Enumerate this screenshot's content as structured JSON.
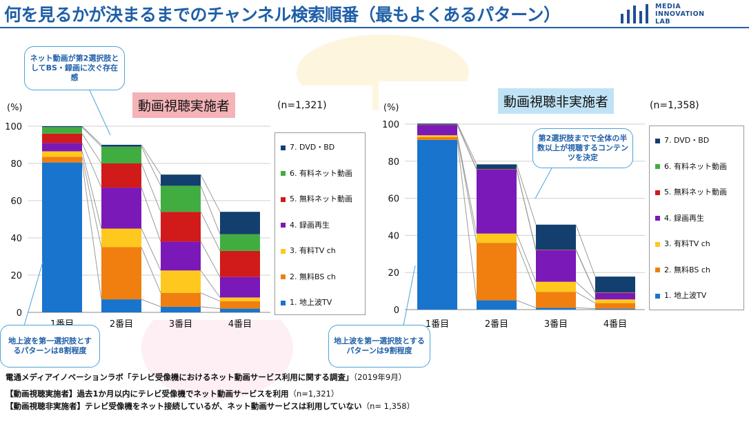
{
  "page": {
    "title": "何を見るかが決まるまでのチャンネル検索順番（最もよくあるパターン）",
    "logo": [
      "MEDIA",
      "INNOVATION",
      "LAB"
    ],
    "source_org": "電通メディアイノベーションラボ「テレビ受像機におけるネット動画サービス利用に関する調査」",
    "source_date": "（2019年9月）",
    "note1_label": "【動画視聴実施者】過去1か月以内にテレビ受像機でネット動画サービスを利用",
    "note1_n": "（n=1,321）",
    "note2_label": "【動画視聴非実施者】テレビ受像機をネット接続しているが、ネット動画サービスは利用していない",
    "note2_n": "（n= 1,358）"
  },
  "colors": {
    "title": "#1f5fa8",
    "chart1_title_bg": "#f4b3b7",
    "chart2_title_bg": "#bfe3f5",
    "series": [
      "#1874cd",
      "#f07f10",
      "#ffc81e",
      "#7a18b8",
      "#d11a1a",
      "#41ad41",
      "#123f6e"
    ]
  },
  "chart_data": [
    {
      "type": "bar",
      "stacked": true,
      "title": "動画視聴実施者",
      "n_label": "(n=1,321)",
      "unit_label": "(%)",
      "categories": [
        "1番目",
        "2番目",
        "3番目",
        "4番目"
      ],
      "ylim": [
        0,
        100
      ],
      "yticks": [
        0,
        20,
        40,
        60,
        80,
        100
      ],
      "grid": true,
      "legend_position": "right",
      "series": [
        {
          "name": "1. 地上波TV",
          "values": [
            80.5,
            7,
            3,
            2
          ]
        },
        {
          "name": "2. 無料BS ch",
          "values": [
            3,
            28,
            7.5,
            4
          ]
        },
        {
          "name": "3. 有料TV ch",
          "values": [
            3,
            10,
            12,
            2
          ]
        },
        {
          "name": "4. 録画再生",
          "values": [
            4.5,
            22,
            15.5,
            11
          ]
        },
        {
          "name": "5. 無料ネット動画",
          "values": [
            5,
            13,
            16,
            14
          ]
        },
        {
          "name": "6. 有料ネット動画",
          "values": [
            3.5,
            9,
            14,
            9
          ]
        },
        {
          "name": "7. DVD・BD",
          "values": [
            0.5,
            1,
            6,
            12
          ]
        }
      ]
    },
    {
      "type": "bar",
      "stacked": true,
      "title": "動画視聴非実施者",
      "n_label": "(n=1,358)",
      "unit_label": "(%)",
      "categories": [
        "1番目",
        "2番目",
        "3番目",
        "4番目"
      ],
      "ylim": [
        0,
        100
      ],
      "yticks": [
        0,
        20,
        40,
        60,
        80,
        100
      ],
      "grid": true,
      "legend_position": "right",
      "series": [
        {
          "name": "1. 地上波TV",
          "values": [
            91.5,
            5,
            1,
            0.5
          ]
        },
        {
          "name": "2. 無料BS ch",
          "values": [
            1.5,
            31,
            8.5,
            3
          ]
        },
        {
          "name": "3. 有料TV ch",
          "values": [
            1,
            5,
            5.5,
            2
          ]
        },
        {
          "name": "4. 録画再生",
          "values": [
            5.5,
            34.5,
            17,
            3.5
          ]
        },
        {
          "name": "5. 無料ネット動画",
          "values": [
            0.2,
            0.2,
            0.2,
            0.2
          ]
        },
        {
          "name": "6. 有料ネット動画",
          "values": [
            0.1,
            0.1,
            0.1,
            0.1
          ]
        },
        {
          "name": "7. DVD・BD",
          "values": [
            0.5,
            2.5,
            13.5,
            8.5
          ]
        }
      ]
    }
  ],
  "callouts": {
    "c1": "ネット動画が第2選択肢としてBS・録画に次ぐ存在感",
    "c2": "地上波を第一選択肢とするパターンは8割程度",
    "c3": "地上波を第一選択肢とするパターンは9割程度",
    "c4": "第2選択肢までで全体の半数以上が視聴するコンテンツを決定"
  }
}
